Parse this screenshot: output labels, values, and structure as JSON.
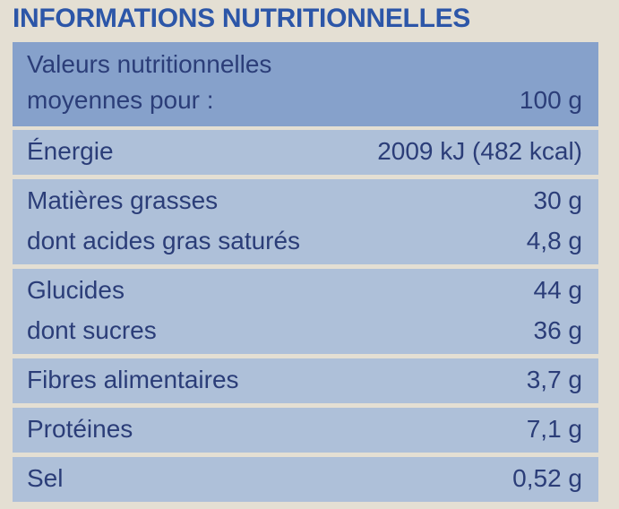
{
  "title": "INFORMATIONS NUTRITIONNELLES",
  "table": {
    "header": {
      "label_lines": [
        "Valeurs nutritionnelles",
        "moyennes pour :"
      ],
      "value": "100 g"
    },
    "rows": [
      [
        [
          "Énergie",
          "2009 kJ (482 kcal)"
        ]
      ],
      [
        [
          "Matières grasses",
          "30 g"
        ],
        [
          "dont acides gras saturés",
          "4,8 g"
        ]
      ],
      [
        [
          "Glucides",
          "44 g"
        ],
        [
          "dont sucres",
          "36 g"
        ]
      ],
      [
        [
          "Fibres alimentaires",
          "3,7 g"
        ]
      ],
      [
        [
          "Protéines",
          "7,1 g"
        ]
      ],
      [
        [
          "Sel",
          "0,52 g"
        ]
      ]
    ]
  }
}
